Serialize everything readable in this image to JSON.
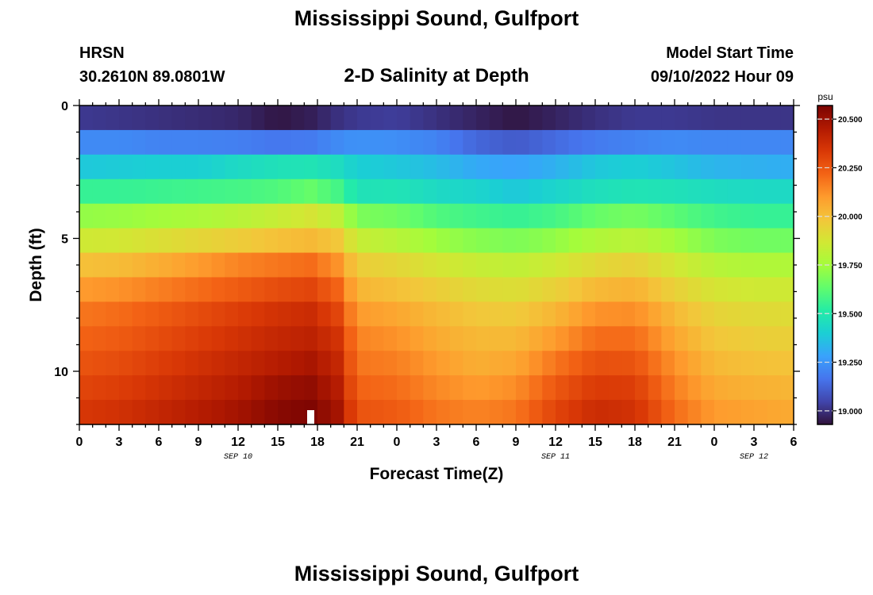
{
  "header": {
    "title": "Mississippi Sound, Gulfport",
    "station": "HRSN",
    "coords": "30.2610N  89.0801W",
    "subtitle": "2-D Salinity at Depth",
    "model_label": "Model Start Time",
    "model_time": "09/10/2022 Hour 09",
    "repeat_title": "Mississippi Sound, Gulfport"
  },
  "chart_data": {
    "type": "heatmap",
    "xlabel": "Forecast Time(Z)",
    "ylabel": "Depth (ft)",
    "xlim": [
      0,
      54
    ],
    "ylim": [
      0,
      12
    ],
    "x_tick_values": [
      0,
      3,
      6,
      9,
      12,
      15,
      18,
      21,
      24,
      27,
      30,
      33,
      36,
      39,
      42,
      45,
      48,
      51,
      54
    ],
    "x_tick_labels": [
      "0",
      "3",
      "6",
      "9",
      "12",
      "15",
      "18",
      "21",
      "0",
      "3",
      "6",
      "9",
      "12",
      "15",
      "18",
      "21",
      "0",
      "3",
      "6"
    ],
    "y_tick_values": [
      0,
      5,
      10
    ],
    "y_tick_labels": [
      "0",
      "5",
      "10"
    ],
    "date_labels": [
      {
        "x": 12,
        "label": "SEP 10"
      },
      {
        "x": 36,
        "label": "SEP 11"
      },
      {
        "x": 51,
        "label": "SEP 12"
      }
    ],
    "colorbar": {
      "unit": "psu",
      "min": 18.93,
      "max": 20.57,
      "ticks": [
        19.0,
        19.25,
        19.5,
        19.75,
        20.0,
        20.25,
        20.5
      ],
      "tick_labels": [
        "19.000",
        "19.250",
        "19.500",
        "19.750",
        "20.000",
        "20.250",
        "20.500"
      ],
      "colormap": [
        "#30123b",
        "#4145ab",
        "#4675ed",
        "#39a2fc",
        "#1bcfd4",
        "#24eca6",
        "#61fc6c",
        "#a4fc3b",
        "#d1e834",
        "#f3c63a",
        "#fe9b2d",
        "#f36315",
        "#d93806",
        "#b11901",
        "#7a0402"
      ]
    },
    "depth_layers": [
      0,
      1,
      2,
      3,
      4,
      5,
      6,
      7,
      8,
      9,
      10,
      11,
      12
    ],
    "time_points": [
      0,
      3,
      6,
      9,
      12,
      15,
      17.5,
      19.5,
      21,
      24,
      27,
      30,
      33,
      36,
      39,
      42,
      45,
      48,
      51,
      54
    ],
    "salinity": [
      [
        19.02,
        19.01,
        19.0,
        18.99,
        18.98,
        18.94,
        18.96,
        19.0,
        19.02,
        19.03,
        19.0,
        18.97,
        18.94,
        18.97,
        19.0,
        19.02,
        19.02,
        19.01,
        19.01,
        19.01
      ],
      [
        19.22,
        19.22,
        19.2,
        19.2,
        19.19,
        19.17,
        19.18,
        19.22,
        19.24,
        19.23,
        19.2,
        19.13,
        19.1,
        19.14,
        19.18,
        19.2,
        19.22,
        19.21,
        19.21,
        19.21
      ],
      [
        19.38,
        19.39,
        19.4,
        19.4,
        19.44,
        19.47,
        19.48,
        19.45,
        19.4,
        19.38,
        19.35,
        19.3,
        19.28,
        19.32,
        19.38,
        19.4,
        19.37,
        19.33,
        19.32,
        19.31
      ],
      [
        19.55,
        19.55,
        19.56,
        19.57,
        19.58,
        19.6,
        19.64,
        19.58,
        19.47,
        19.48,
        19.44,
        19.42,
        19.38,
        19.42,
        19.46,
        19.48,
        19.47,
        19.45,
        19.44,
        19.44
      ],
      [
        19.72,
        19.73,
        19.75,
        19.77,
        19.8,
        19.84,
        19.88,
        19.82,
        19.68,
        19.66,
        19.6,
        19.57,
        19.55,
        19.58,
        19.64,
        19.67,
        19.62,
        19.57,
        19.55,
        19.55
      ],
      [
        19.86,
        19.87,
        19.9,
        19.93,
        19.96,
        20.0,
        20.02,
        19.98,
        19.84,
        19.8,
        19.74,
        19.7,
        19.68,
        19.72,
        19.78,
        19.81,
        19.75,
        19.68,
        19.66,
        19.66
      ],
      [
        20.0,
        20.01,
        20.05,
        20.1,
        20.15,
        20.18,
        20.2,
        20.12,
        19.96,
        19.93,
        19.88,
        19.84,
        19.82,
        19.86,
        19.92,
        19.95,
        19.87,
        19.8,
        19.78,
        19.78
      ],
      [
        20.1,
        20.12,
        20.16,
        20.2,
        20.24,
        20.28,
        20.3,
        20.22,
        20.03,
        20.0,
        19.96,
        19.92,
        19.9,
        19.95,
        20.02,
        20.04,
        19.95,
        19.88,
        19.86,
        19.86
      ],
      [
        20.18,
        20.2,
        20.24,
        20.28,
        20.32,
        20.36,
        20.38,
        20.3,
        20.1,
        20.07,
        20.02,
        19.98,
        19.97,
        20.03,
        20.12,
        20.13,
        20.02,
        19.94,
        19.92,
        19.91
      ],
      [
        20.22,
        20.24,
        20.28,
        20.32,
        20.36,
        20.4,
        20.42,
        20.36,
        20.15,
        20.12,
        20.06,
        20.02,
        20.02,
        20.1,
        20.2,
        20.2,
        20.07,
        19.98,
        19.96,
        19.95
      ],
      [
        20.26,
        20.28,
        20.32,
        20.36,
        20.4,
        20.44,
        20.47,
        20.4,
        20.18,
        20.16,
        20.1,
        20.05,
        20.07,
        20.18,
        20.27,
        20.26,
        20.12,
        20.02,
        20.0,
        19.99
      ],
      [
        20.3,
        20.32,
        20.36,
        20.4,
        20.44,
        20.5,
        20.52,
        20.44,
        20.22,
        20.2,
        20.14,
        20.1,
        20.13,
        20.25,
        20.33,
        20.32,
        20.16,
        20.06,
        20.04,
        20.03
      ],
      [
        20.34,
        20.36,
        20.4,
        20.44,
        20.48,
        20.54,
        20.56,
        20.48,
        20.26,
        20.24,
        20.18,
        20.15,
        20.18,
        20.3,
        20.38,
        20.36,
        20.2,
        20.1,
        20.08,
        20.06
      ]
    ]
  }
}
